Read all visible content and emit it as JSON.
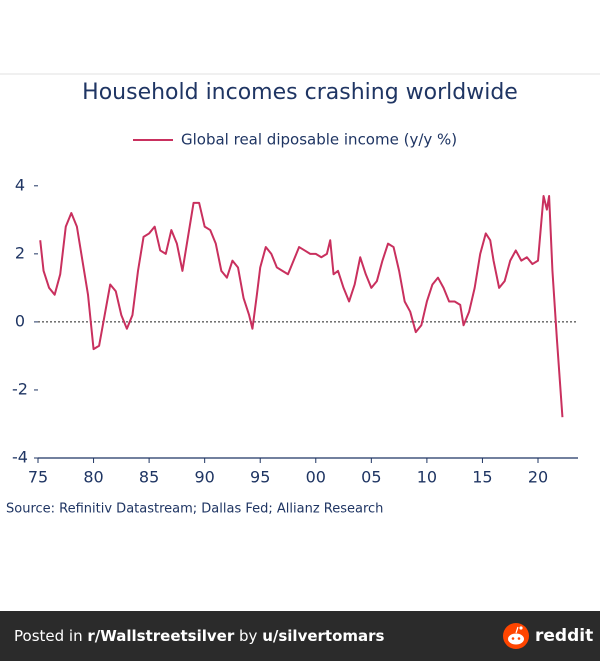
{
  "chart_data": {
    "type": "line",
    "title": "Household incomes crashing worldwide",
    "source": "Source: Refinitiv Datastream; Dallas Fed; Allianz Research",
    "legend_position": "top",
    "zero_line": true,
    "series": [
      {
        "name": "Global real diposable income (y/y %)",
        "color": "#c9305e",
        "x": [
          1975.2,
          1975.5,
          1976,
          1976.5,
          1977,
          1977.5,
          1978,
          1978.5,
          1979,
          1979.5,
          1980,
          1980.5,
          1981,
          1981.5,
          1982,
          1982.5,
          1983,
          1983.5,
          1984,
          1984.5,
          1985,
          1985.5,
          1986,
          1986.5,
          1987,
          1987.5,
          1988,
          1988.5,
          1989,
          1989.5,
          1990,
          1990.5,
          1991,
          1991.5,
          1992,
          1992.5,
          1993,
          1993.5,
          1994,
          1994.3,
          1994.7,
          1995,
          1995.5,
          1996,
          1996.5,
          1997,
          1997.5,
          1998,
          1998.5,
          1999,
          1999.5,
          2000,
          2000.5,
          2001,
          2001.3,
          2001.6,
          2002,
          2002.5,
          2003,
          2003.5,
          2004,
          2004.5,
          2005,
          2005.5,
          2006,
          2006.5,
          2007,
          2007.5,
          2008,
          2008.5,
          2009,
          2009.5,
          2010,
          2010.5,
          2011,
          2011.5,
          2012,
          2012.5,
          2013,
          2013.3,
          2013.8,
          2014.3,
          2014.8,
          2015.3,
          2015.7,
          2016,
          2016.5,
          2017,
          2017.5,
          2018,
          2018.5,
          2019,
          2019.5,
          2020,
          2020.5,
          2020.8,
          2021,
          2021.3,
          2021.7,
          2022.2
        ],
        "values": [
          2.4,
          1.5,
          1.0,
          0.8,
          1.4,
          2.8,
          3.2,
          2.8,
          1.8,
          0.8,
          -0.8,
          -0.7,
          0.2,
          1.1,
          0.9,
          0.2,
          -0.2,
          0.2,
          1.5,
          2.5,
          2.6,
          2.8,
          2.1,
          2.0,
          2.7,
          2.3,
          1.5,
          2.5,
          3.5,
          3.5,
          2.8,
          2.7,
          2.3,
          1.5,
          1.3,
          1.8,
          1.6,
          0.7,
          0.2,
          -0.2,
          0.8,
          1.6,
          2.2,
          2.0,
          1.6,
          1.5,
          1.4,
          1.8,
          2.2,
          2.1,
          2.0,
          2.0,
          1.9,
          2.0,
          2.4,
          1.4,
          1.5,
          1.0,
          0.6,
          1.1,
          1.9,
          1.4,
          1.0,
          1.2,
          1.8,
          2.3,
          2.2,
          1.5,
          0.6,
          0.3,
          -0.3,
          -0.1,
          0.6,
          1.1,
          1.3,
          1.0,
          0.6,
          0.6,
          0.5,
          -0.1,
          0.3,
          1.0,
          2.0,
          2.6,
          2.4,
          1.8,
          1.0,
          1.2,
          1.8,
          2.1,
          1.8,
          1.9,
          1.7,
          1.8,
          3.7,
          3.3,
          3.7,
          1.5,
          -0.5,
          -2.8
        ]
      }
    ],
    "xlim": [
      1975,
      2023.6
    ],
    "xticks": [
      {
        "value": 1975,
        "label": "75"
      },
      {
        "value": 1980,
        "label": "80"
      },
      {
        "value": 1985,
        "label": "85"
      },
      {
        "value": 1990,
        "label": "90"
      },
      {
        "value": 1995,
        "label": "95"
      },
      {
        "value": 2000,
        "label": "00"
      },
      {
        "value": 2005,
        "label": "05"
      },
      {
        "value": 2010,
        "label": "10"
      },
      {
        "value": 2015,
        "label": "15"
      },
      {
        "value": 2020,
        "label": "20"
      }
    ],
    "ylim": [
      -4,
      4.2
    ],
    "yticks": [
      -4,
      -2,
      0,
      2,
      4
    ]
  },
  "footer": {
    "posted_in": "Posted in",
    "subreddit": "r/Wallstreetsilver",
    "by": "by",
    "user": "u/silvertomars",
    "brand": "reddit"
  }
}
